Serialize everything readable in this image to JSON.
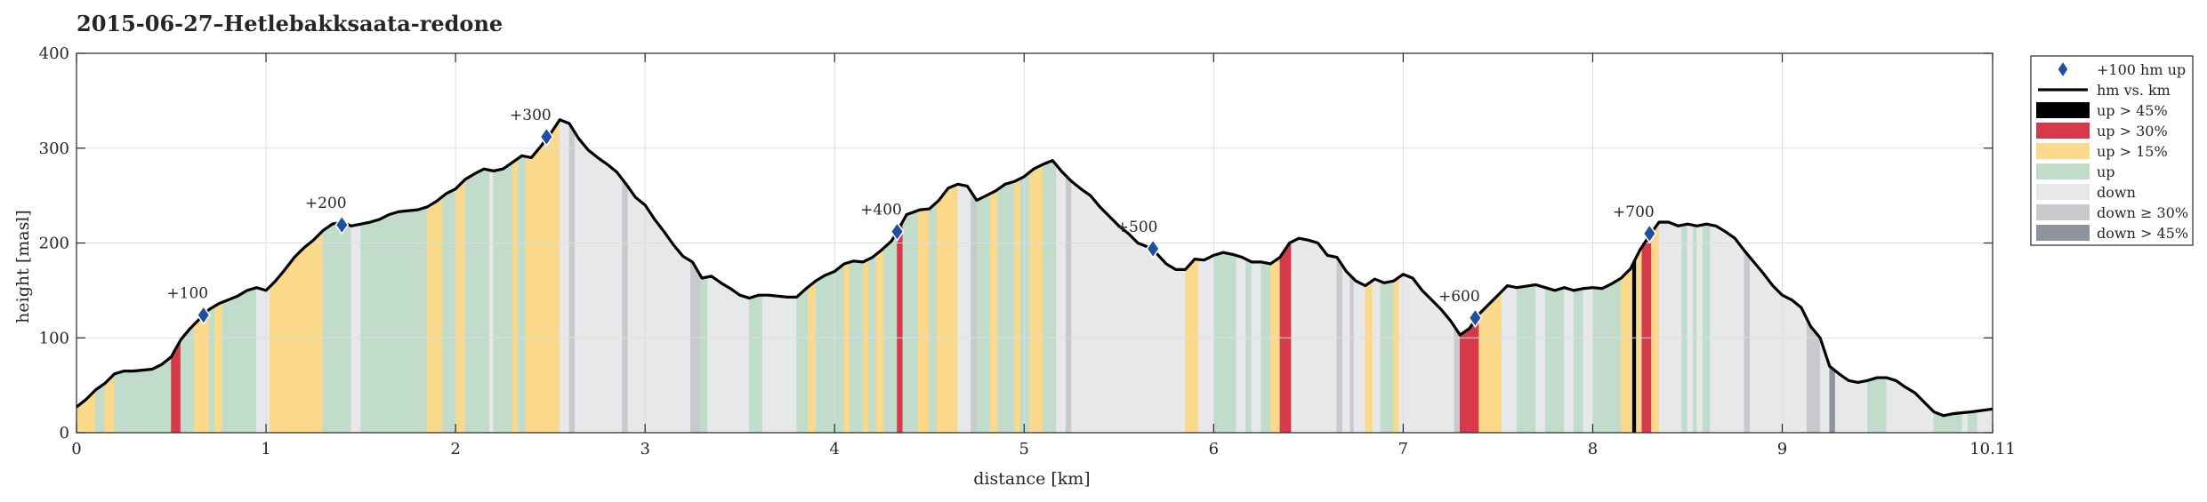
{
  "chart_data": {
    "type": "area",
    "title": "2015-06-27–Hetlebakksaata-redone",
    "xlabel": "distance [km]",
    "ylabel": "height [masl]",
    "xlim": [
      0,
      10.11
    ],
    "ylim": [
      0,
      400
    ],
    "x_ticks": [
      0,
      1,
      2,
      3,
      4,
      5,
      6,
      7,
      8,
      9,
      10.11
    ],
    "x_tick_labels": [
      "0",
      "1",
      "2",
      "3",
      "4",
      "5",
      "6",
      "7",
      "8",
      "9",
      "10.11"
    ],
    "y_ticks": [
      0,
      100,
      200,
      300,
      400
    ],
    "y_tick_labels": [
      "0",
      "100",
      "200",
      "300",
      "400"
    ],
    "grid": true,
    "legend_position": "outside-right",
    "colors": {
      "line": "#000000",
      "marker": "#1f4fa0",
      "up45": "#000000",
      "up30": "#d63a4a",
      "up15": "#fbd98a",
      "up": "#c2dccb",
      "down": "#e7e8ea",
      "down30": "#c7c9cd",
      "down45": "#8e939d",
      "grid": "#dddddd",
      "axis": "#262626"
    },
    "legend": [
      {
        "key": "marker",
        "label": "+100 hm up"
      },
      {
        "key": "line",
        "label": "hm vs. km"
      },
      {
        "key": "up45",
        "label": "up > 45%"
      },
      {
        "key": "up30",
        "label": "up > 30%"
      },
      {
        "key": "up15",
        "label": "up > 15%"
      },
      {
        "key": "up",
        "label": "up"
      },
      {
        "key": "down",
        "label": "down"
      },
      {
        "key": "down30",
        "label": "down ≥ 30%"
      },
      {
        "key": "down45",
        "label": "down > 45%"
      }
    ],
    "profile": [
      [
        0,
        27
      ],
      [
        0.05,
        35
      ],
      [
        0.1,
        45
      ],
      [
        0.15,
        52
      ],
      [
        0.2,
        62
      ],
      [
        0.25,
        65
      ],
      [
        0.3,
        65
      ],
      [
        0.4,
        67
      ],
      [
        0.45,
        72
      ],
      [
        0.5,
        80
      ],
      [
        0.55,
        98
      ],
      [
        0.6,
        110
      ],
      [
        0.65,
        120
      ],
      [
        0.7,
        130
      ],
      [
        0.75,
        136
      ],
      [
        0.8,
        140
      ],
      [
        0.85,
        144
      ],
      [
        0.9,
        150
      ],
      [
        0.95,
        153
      ],
      [
        1.0,
        150
      ],
      [
        1.05,
        160
      ],
      [
        1.1,
        172
      ],
      [
        1.15,
        185
      ],
      [
        1.2,
        195
      ],
      [
        1.25,
        203
      ],
      [
        1.3,
        213
      ],
      [
        1.35,
        220
      ],
      [
        1.4,
        222
      ],
      [
        1.45,
        218
      ],
      [
        1.5,
        220
      ],
      [
        1.55,
        222
      ],
      [
        1.6,
        225
      ],
      [
        1.65,
        230
      ],
      [
        1.7,
        233
      ],
      [
        1.8,
        235
      ],
      [
        1.85,
        238
      ],
      [
        1.9,
        244
      ],
      [
        1.95,
        252
      ],
      [
        2.0,
        257
      ],
      [
        2.05,
        267
      ],
      [
        2.1,
        273
      ],
      [
        2.15,
        278
      ],
      [
        2.2,
        276
      ],
      [
        2.25,
        278
      ],
      [
        2.3,
        285
      ],
      [
        2.35,
        292
      ],
      [
        2.4,
        290
      ],
      [
        2.45,
        302
      ],
      [
        2.5,
        315
      ],
      [
        2.55,
        330
      ],
      [
        2.6,
        326
      ],
      [
        2.65,
        310
      ],
      [
        2.7,
        298
      ],
      [
        2.75,
        290
      ],
      [
        2.8,
        283
      ],
      [
        2.85,
        275
      ],
      [
        2.9,
        262
      ],
      [
        2.95,
        248
      ],
      [
        3.0,
        240
      ],
      [
        3.05,
        225
      ],
      [
        3.1,
        212
      ],
      [
        3.15,
        198
      ],
      [
        3.2,
        186
      ],
      [
        3.25,
        180
      ],
      [
        3.3,
        163
      ],
      [
        3.35,
        165
      ],
      [
        3.4,
        158
      ],
      [
        3.45,
        152
      ],
      [
        3.5,
        145
      ],
      [
        3.55,
        142
      ],
      [
        3.6,
        145
      ],
      [
        3.65,
        145
      ],
      [
        3.75,
        143
      ],
      [
        3.8,
        143
      ],
      [
        3.85,
        152
      ],
      [
        3.9,
        160
      ],
      [
        3.95,
        166
      ],
      [
        4.0,
        170
      ],
      [
        4.05,
        178
      ],
      [
        4.1,
        181
      ],
      [
        4.15,
        180
      ],
      [
        4.2,
        185
      ],
      [
        4.25,
        193
      ],
      [
        4.3,
        202
      ],
      [
        4.33,
        212
      ],
      [
        4.38,
        230
      ],
      [
        4.45,
        235
      ],
      [
        4.5,
        236
      ],
      [
        4.55,
        245
      ],
      [
        4.6,
        258
      ],
      [
        4.65,
        262
      ],
      [
        4.7,
        260
      ],
      [
        4.75,
        245
      ],
      [
        4.8,
        250
      ],
      [
        4.85,
        255
      ],
      [
        4.9,
        262
      ],
      [
        4.95,
        265
      ],
      [
        5.0,
        270
      ],
      [
        5.05,
        278
      ],
      [
        5.1,
        283
      ],
      [
        5.15,
        287
      ],
      [
        5.2,
        275
      ],
      [
        5.25,
        265
      ],
      [
        5.3,
        257
      ],
      [
        5.35,
        250
      ],
      [
        5.4,
        238
      ],
      [
        5.45,
        228
      ],
      [
        5.5,
        218
      ],
      [
        5.55,
        210
      ],
      [
        5.6,
        200
      ],
      [
        5.65,
        196
      ],
      [
        5.68,
        193
      ],
      [
        5.75,
        178
      ],
      [
        5.8,
        172
      ],
      [
        5.85,
        172
      ],
      [
        5.9,
        183
      ],
      [
        5.95,
        182
      ],
      [
        6.0,
        187
      ],
      [
        6.05,
        190
      ],
      [
        6.1,
        188
      ],
      [
        6.15,
        185
      ],
      [
        6.2,
        180
      ],
      [
        6.25,
        180
      ],
      [
        6.3,
        178
      ],
      [
        6.35,
        185
      ],
      [
        6.4,
        200
      ],
      [
        6.45,
        205
      ],
      [
        6.5,
        203
      ],
      [
        6.55,
        200
      ],
      [
        6.6,
        187
      ],
      [
        6.65,
        185
      ],
      [
        6.7,
        170
      ],
      [
        6.75,
        160
      ],
      [
        6.8,
        155
      ],
      [
        6.85,
        162
      ],
      [
        6.9,
        158
      ],
      [
        6.95,
        160
      ],
      [
        7.0,
        167
      ],
      [
        7.05,
        163
      ],
      [
        7.1,
        150
      ],
      [
        7.15,
        140
      ],
      [
        7.2,
        130
      ],
      [
        7.25,
        118
      ],
      [
        7.3,
        103
      ],
      [
        7.35,
        110
      ],
      [
        7.4,
        125
      ],
      [
        7.45,
        135
      ],
      [
        7.5,
        145
      ],
      [
        7.55,
        155
      ],
      [
        7.6,
        153
      ],
      [
        7.7,
        156
      ],
      [
        7.75,
        153
      ],
      [
        7.8,
        150
      ],
      [
        7.85,
        153
      ],
      [
        7.9,
        150
      ],
      [
        7.95,
        152
      ],
      [
        8.0,
        153
      ],
      [
        8.05,
        152
      ],
      [
        8.1,
        157
      ],
      [
        8.15,
        163
      ],
      [
        8.2,
        173
      ],
      [
        8.25,
        193
      ],
      [
        8.3,
        208
      ],
      [
        8.35,
        222
      ],
      [
        8.4,
        222
      ],
      [
        8.45,
        218
      ],
      [
        8.5,
        220
      ],
      [
        8.55,
        218
      ],
      [
        8.6,
        220
      ],
      [
        8.65,
        218
      ],
      [
        8.7,
        212
      ],
      [
        8.75,
        205
      ],
      [
        8.8,
        192
      ],
      [
        8.85,
        180
      ],
      [
        8.9,
        168
      ],
      [
        8.95,
        155
      ],
      [
        9.0,
        145
      ],
      [
        9.05,
        140
      ],
      [
        9.1,
        132
      ],
      [
        9.15,
        112
      ],
      [
        9.2,
        100
      ],
      [
        9.25,
        70
      ],
      [
        9.3,
        62
      ],
      [
        9.35,
        55
      ],
      [
        9.4,
        53
      ],
      [
        9.45,
        55
      ],
      [
        9.5,
        58
      ],
      [
        9.55,
        58
      ],
      [
        9.6,
        55
      ],
      [
        9.65,
        48
      ],
      [
        9.7,
        42
      ],
      [
        9.75,
        32
      ],
      [
        9.8,
        22
      ],
      [
        9.85,
        18
      ],
      [
        9.9,
        20
      ],
      [
        10.0,
        22
      ],
      [
        10.11,
        25
      ]
    ],
    "bands": [
      {
        "x0": 0,
        "x1": 0.1,
        "type": "up15"
      },
      {
        "x0": 0.1,
        "x1": 0.15,
        "type": "up"
      },
      {
        "x0": 0.15,
        "x1": 0.2,
        "type": "up15"
      },
      {
        "x0": 0.2,
        "x1": 0.5,
        "type": "up"
      },
      {
        "x0": 0.5,
        "x1": 0.55,
        "type": "up30"
      },
      {
        "x0": 0.55,
        "x1": 0.62,
        "type": "up"
      },
      {
        "x0": 0.62,
        "x1": 0.7,
        "type": "up15"
      },
      {
        "x0": 0.7,
        "x1": 0.73,
        "type": "up"
      },
      {
        "x0": 0.73,
        "x1": 0.77,
        "type": "up15"
      },
      {
        "x0": 0.77,
        "x1": 0.95,
        "type": "up"
      },
      {
        "x0": 0.95,
        "x1": 1.02,
        "type": "down"
      },
      {
        "x0": 1.02,
        "x1": 1.3,
        "type": "up15"
      },
      {
        "x0": 1.3,
        "x1": 1.45,
        "type": "up"
      },
      {
        "x0": 1.45,
        "x1": 1.5,
        "type": "down"
      },
      {
        "x0": 1.5,
        "x1": 1.85,
        "type": "up"
      },
      {
        "x0": 1.85,
        "x1": 1.93,
        "type": "up15"
      },
      {
        "x0": 1.93,
        "x1": 2.0,
        "type": "up"
      },
      {
        "x0": 2.0,
        "x1": 2.05,
        "type": "up15"
      },
      {
        "x0": 2.05,
        "x1": 2.18,
        "type": "up"
      },
      {
        "x0": 2.18,
        "x1": 2.2,
        "type": "down"
      },
      {
        "x0": 2.2,
        "x1": 2.3,
        "type": "up"
      },
      {
        "x0": 2.3,
        "x1": 2.33,
        "type": "up15"
      },
      {
        "x0": 2.33,
        "x1": 2.37,
        "type": "up"
      },
      {
        "x0": 2.37,
        "x1": 2.55,
        "type": "up15"
      },
      {
        "x0": 2.55,
        "x1": 2.6,
        "type": "down"
      },
      {
        "x0": 2.6,
        "x1": 2.63,
        "type": "down30"
      },
      {
        "x0": 2.63,
        "x1": 2.88,
        "type": "down"
      },
      {
        "x0": 2.88,
        "x1": 2.91,
        "type": "down30"
      },
      {
        "x0": 2.91,
        "x1": 3.24,
        "type": "down"
      },
      {
        "x0": 3.24,
        "x1": 3.29,
        "type": "down30"
      },
      {
        "x0": 3.29,
        "x1": 3.33,
        "type": "up"
      },
      {
        "x0": 3.33,
        "x1": 3.55,
        "type": "down"
      },
      {
        "x0": 3.55,
        "x1": 3.62,
        "type": "up"
      },
      {
        "x0": 3.62,
        "x1": 3.8,
        "type": "down"
      },
      {
        "x0": 3.8,
        "x1": 3.86,
        "type": "up"
      },
      {
        "x0": 3.86,
        "x1": 3.9,
        "type": "up15"
      },
      {
        "x0": 3.9,
        "x1": 4.05,
        "type": "up"
      },
      {
        "x0": 4.05,
        "x1": 4.08,
        "type": "up15"
      },
      {
        "x0": 4.08,
        "x1": 4.15,
        "type": "up"
      },
      {
        "x0": 4.15,
        "x1": 4.18,
        "type": "up15"
      },
      {
        "x0": 4.18,
        "x1": 4.22,
        "type": "up"
      },
      {
        "x0": 4.22,
        "x1": 4.26,
        "type": "up15"
      },
      {
        "x0": 4.26,
        "x1": 4.33,
        "type": "up"
      },
      {
        "x0": 4.33,
        "x1": 4.36,
        "type": "up30"
      },
      {
        "x0": 4.36,
        "x1": 4.44,
        "type": "up"
      },
      {
        "x0": 4.44,
        "x1": 4.5,
        "type": "up15"
      },
      {
        "x0": 4.5,
        "x1": 4.54,
        "type": "up"
      },
      {
        "x0": 4.54,
        "x1": 4.65,
        "type": "up15"
      },
      {
        "x0": 4.65,
        "x1": 4.72,
        "type": "down"
      },
      {
        "x0": 4.72,
        "x1": 4.75,
        "type": "down30"
      },
      {
        "x0": 4.75,
        "x1": 4.82,
        "type": "up"
      },
      {
        "x0": 4.82,
        "x1": 4.86,
        "type": "up15"
      },
      {
        "x0": 4.86,
        "x1": 4.95,
        "type": "up"
      },
      {
        "x0": 4.95,
        "x1": 4.98,
        "type": "up15"
      },
      {
        "x0": 4.98,
        "x1": 5.03,
        "type": "up"
      },
      {
        "x0": 5.03,
        "x1": 5.1,
        "type": "up15"
      },
      {
        "x0": 5.1,
        "x1": 5.17,
        "type": "up"
      },
      {
        "x0": 5.17,
        "x1": 5.22,
        "type": "down"
      },
      {
        "x0": 5.22,
        "x1": 5.25,
        "type": "down30"
      },
      {
        "x0": 5.25,
        "x1": 5.85,
        "type": "down"
      },
      {
        "x0": 5.85,
        "x1": 5.92,
        "type": "up15"
      },
      {
        "x0": 5.92,
        "x1": 6.0,
        "type": "down"
      },
      {
        "x0": 6.0,
        "x1": 6.12,
        "type": "up"
      },
      {
        "x0": 6.12,
        "x1": 6.17,
        "type": "down"
      },
      {
        "x0": 6.17,
        "x1": 6.2,
        "type": "up"
      },
      {
        "x0": 6.2,
        "x1": 6.25,
        "type": "down"
      },
      {
        "x0": 6.25,
        "x1": 6.3,
        "type": "up"
      },
      {
        "x0": 6.3,
        "x1": 6.35,
        "type": "up15"
      },
      {
        "x0": 6.35,
        "x1": 6.41,
        "type": "up30"
      },
      {
        "x0": 6.41,
        "x1": 6.65,
        "type": "down"
      },
      {
        "x0": 6.65,
        "x1": 6.68,
        "type": "down30"
      },
      {
        "x0": 6.68,
        "x1": 6.72,
        "type": "down"
      },
      {
        "x0": 6.72,
        "x1": 6.74,
        "type": "down30"
      },
      {
        "x0": 6.74,
        "x1": 6.8,
        "type": "down"
      },
      {
        "x0": 6.8,
        "x1": 6.84,
        "type": "up15"
      },
      {
        "x0": 6.84,
        "x1": 6.88,
        "type": "down"
      },
      {
        "x0": 6.88,
        "x1": 6.95,
        "type": "up"
      },
      {
        "x0": 6.95,
        "x1": 6.98,
        "type": "up15"
      },
      {
        "x0": 6.98,
        "x1": 7.27,
        "type": "down"
      },
      {
        "x0": 7.27,
        "x1": 7.3,
        "type": "down30"
      },
      {
        "x0": 7.3,
        "x1": 7.4,
        "type": "up30"
      },
      {
        "x0": 7.4,
        "x1": 7.52,
        "type": "up15"
      },
      {
        "x0": 7.52,
        "x1": 7.6,
        "type": "down"
      },
      {
        "x0": 7.6,
        "x1": 7.7,
        "type": "up"
      },
      {
        "x0": 7.7,
        "x1": 7.75,
        "type": "down"
      },
      {
        "x0": 7.75,
        "x1": 7.85,
        "type": "up"
      },
      {
        "x0": 7.85,
        "x1": 7.9,
        "type": "down"
      },
      {
        "x0": 7.9,
        "x1": 7.95,
        "type": "up"
      },
      {
        "x0": 7.95,
        "x1": 8.0,
        "type": "down"
      },
      {
        "x0": 8.0,
        "x1": 8.15,
        "type": "up"
      },
      {
        "x0": 8.15,
        "x1": 8.21,
        "type": "up15"
      },
      {
        "x0": 8.21,
        "x1": 8.23,
        "type": "up45"
      },
      {
        "x0": 8.23,
        "x1": 8.26,
        "type": "up15"
      },
      {
        "x0": 8.26,
        "x1": 8.31,
        "type": "up30"
      },
      {
        "x0": 8.31,
        "x1": 8.35,
        "type": "up15"
      },
      {
        "x0": 8.35,
        "x1": 8.47,
        "type": "down"
      },
      {
        "x0": 8.47,
        "x1": 8.5,
        "type": "up"
      },
      {
        "x0": 8.5,
        "x1": 8.53,
        "type": "down"
      },
      {
        "x0": 8.53,
        "x1": 8.55,
        "type": "up"
      },
      {
        "x0": 8.55,
        "x1": 8.58,
        "type": "down"
      },
      {
        "x0": 8.58,
        "x1": 8.62,
        "type": "up"
      },
      {
        "x0": 8.62,
        "x1": 8.8,
        "type": "down"
      },
      {
        "x0": 8.8,
        "x1": 8.83,
        "type": "down30"
      },
      {
        "x0": 8.83,
        "x1": 9.13,
        "type": "down"
      },
      {
        "x0": 9.13,
        "x1": 9.2,
        "type": "down30"
      },
      {
        "x0": 9.2,
        "x1": 9.25,
        "type": "down"
      },
      {
        "x0": 9.25,
        "x1": 9.28,
        "type": "down45"
      },
      {
        "x0": 9.28,
        "x1": 9.45,
        "type": "down"
      },
      {
        "x0": 9.45,
        "x1": 9.55,
        "type": "up"
      },
      {
        "x0": 9.55,
        "x1": 9.8,
        "type": "down"
      },
      {
        "x0": 9.8,
        "x1": 9.95,
        "type": "up"
      },
      {
        "x0": 9.95,
        "x1": 9.98,
        "type": "down"
      },
      {
        "x0": 9.98,
        "x1": 10.03,
        "type": "up"
      },
      {
        "x0": 10.03,
        "x1": 10.11,
        "type": "down"
      }
    ],
    "milestones": [
      {
        "label": "+100",
        "x": 0.67,
        "y": 124
      },
      {
        "label": "+200",
        "x": 1.4,
        "y": 219
      },
      {
        "label": "+300",
        "x": 2.48,
        "y": 312
      },
      {
        "label": "+400",
        "x": 4.33,
        "y": 212
      },
      {
        "label": "+500",
        "x": 5.68,
        "y": 194
      },
      {
        "label": "+600",
        "x": 7.38,
        "y": 121
      },
      {
        "label": "+700",
        "x": 8.3,
        "y": 210
      }
    ]
  }
}
